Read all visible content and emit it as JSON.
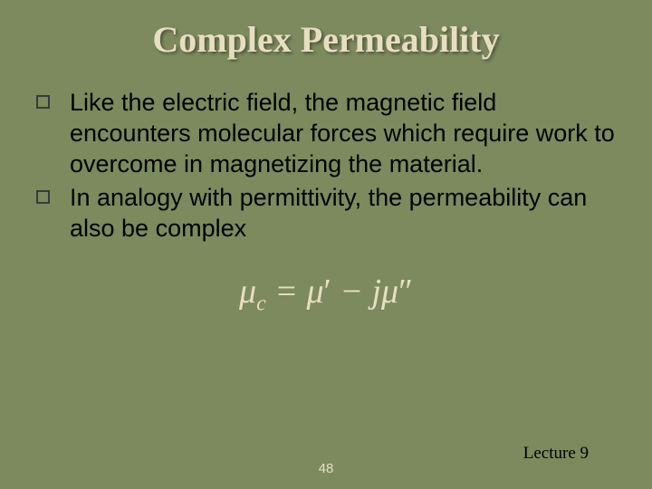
{
  "slide": {
    "background_color": "#7c8a5e",
    "title": {
      "text": "Complex Permeability",
      "color": "#e7dec0",
      "fontsize": 40
    },
    "bullets": [
      {
        "marker_color": "#3a3a3a",
        "text_color": "#000000",
        "text": "Like the electric field, the magnetic field encounters molecular forces which require work to overcome in magnetizing the material."
      },
      {
        "marker_color": "#3a3a3a",
        "text_color": "#000000",
        "text": "In analogy with permittivity, the permeability can also be complex"
      }
    ],
    "equation": {
      "color": "#e7dec0",
      "mu": "μ",
      "sub_c": "c",
      "eq": " = ",
      "mu2": "μ",
      "prime": "′",
      "minus": " − ",
      "j": "j",
      "mu3": "μ",
      "dprime": "″"
    },
    "footer": {
      "page_number": "48",
      "page_color": "#e7dec0",
      "lecture": "Lecture 9",
      "lecture_color": "#000000"
    }
  }
}
